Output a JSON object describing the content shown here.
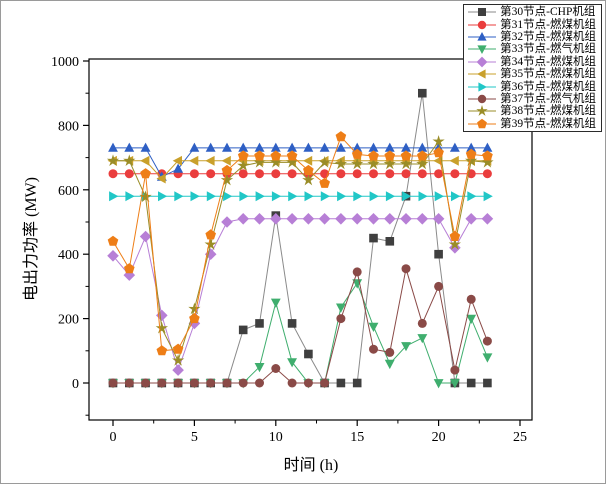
{
  "chart_data": {
    "type": "line",
    "title": "",
    "xlabel": "时间 (h)",
    "ylabel": "电出力功率 (MW)",
    "xlim": [
      0,
      25
    ],
    "ylim": [
      0,
      1000
    ],
    "x_ticks": [
      0,
      5,
      10,
      15,
      20,
      25
    ],
    "x_minor_ticks": [
      2.5,
      7.5,
      12.5,
      17.5,
      22.5
    ],
    "y_ticks": [
      0,
      200,
      400,
      600,
      800,
      1000
    ],
    "y_minor_ticks": [
      -100,
      100,
      300,
      500,
      700,
      900
    ],
    "grid": false,
    "legend_position": "top-right",
    "hours": [
      0,
      1,
      2,
      3,
      4,
      5,
      6,
      7,
      8,
      9,
      10,
      11,
      12,
      13,
      14,
      15,
      16,
      17,
      18,
      19,
      20,
      21,
      22,
      23
    ],
    "series": [
      {
        "id": "node30",
        "name": "第30节点-CHP机组",
        "marker": "square",
        "color": "#3f3f3f",
        "line_color": "#8a8a8a",
        "values": [
          0,
          0,
          0,
          0,
          0,
          0,
          0,
          0,
          165,
          185,
          520,
          185,
          90,
          0,
          0,
          0,
          450,
          440,
          580,
          900,
          400,
          0,
          0,
          0
        ]
      },
      {
        "id": "node31",
        "name": "第31节点-燃煤机组",
        "marker": "circle",
        "color": "#ea3d3d",
        "line_color": "#ea3d3d",
        "values": [
          650,
          650,
          650,
          650,
          650,
          650,
          650,
          650,
          650,
          650,
          650,
          650,
          650,
          650,
          650,
          650,
          650,
          650,
          650,
          650,
          650,
          650,
          650,
          650
        ]
      },
      {
        "id": "node32",
        "name": "第32节点-燃煤机组",
        "marker": "triangle-up",
        "color": "#2e5fc4",
        "line_color": "#2e5fc4",
        "values": [
          730,
          730,
          730,
          640,
          665,
          730,
          730,
          730,
          730,
          730,
          730,
          730,
          730,
          730,
          730,
          730,
          730,
          730,
          730,
          730,
          730,
          730,
          730,
          730
        ]
      },
      {
        "id": "node33",
        "name": "第33节点-燃气机组",
        "marker": "triangle-down",
        "color": "#3fae6e",
        "line_color": "#3fae6e",
        "values": [
          0,
          0,
          0,
          0,
          0,
          0,
          0,
          0,
          0,
          50,
          250,
          65,
          0,
          0,
          235,
          310,
          175,
          60,
          115,
          140,
          0,
          0,
          200,
          80
        ]
      },
      {
        "id": "node34",
        "name": "第34节点-燃煤机组",
        "marker": "diamond",
        "color": "#b77fd6",
        "line_color": "#b77fd6",
        "values": [
          395,
          335,
          455,
          210,
          40,
          185,
          400,
          500,
          510,
          510,
          510,
          510,
          510,
          510,
          510,
          510,
          510,
          510,
          510,
          510,
          510,
          420,
          510,
          510
        ]
      },
      {
        "id": "node35",
        "name": "第35节点-燃煤机组",
        "marker": "triangle-left",
        "color": "#c9a02b",
        "line_color": "#c9a02b",
        "values": [
          690,
          690,
          690,
          635,
          690,
          690,
          690,
          690,
          690,
          690,
          690,
          690,
          690,
          690,
          690,
          690,
          690,
          690,
          690,
          690,
          690,
          690,
          690,
          690
        ]
      },
      {
        "id": "node36",
        "name": "第36节点-燃煤机组",
        "marker": "triangle-right",
        "color": "#21c7c7",
        "line_color": "#21c7c7",
        "values": [
          580,
          580,
          580,
          580,
          580,
          580,
          580,
          580,
          580,
          580,
          580,
          580,
          580,
          580,
          580,
          580,
          580,
          580,
          580,
          580,
          580,
          580,
          580,
          580
        ]
      },
      {
        "id": "node37",
        "name": "第37节点-燃气机组",
        "marker": "circle",
        "color": "#8a4a47",
        "line_color": "#8a4a47",
        "values": [
          0,
          0,
          0,
          0,
          0,
          0,
          0,
          0,
          0,
          0,
          45,
          0,
          0,
          0,
          200,
          345,
          105,
          95,
          355,
          185,
          300,
          40,
          260,
          130
        ]
      },
      {
        "id": "node38",
        "name": "第38节点-燃煤机组",
        "marker": "star",
        "color": "#9a8d28",
        "line_color": "#9a8d28",
        "values": [
          690,
          690,
          578,
          170,
          70,
          230,
          430,
          630,
          675,
          685,
          685,
          685,
          630,
          685,
          680,
          680,
          680,
          680,
          680,
          680,
          750,
          430,
          690,
          685
        ]
      },
      {
        "id": "node39",
        "name": "第39节点-燃煤机组",
        "marker": "pentagon",
        "color": "#ee7e17",
        "line_color": "#ee7e17",
        "values": [
          440,
          355,
          650,
          100,
          105,
          200,
          460,
          660,
          705,
          705,
          705,
          705,
          660,
          620,
          765,
          710,
          705,
          705,
          705,
          705,
          715,
          455,
          710,
          705
        ]
      }
    ]
  }
}
